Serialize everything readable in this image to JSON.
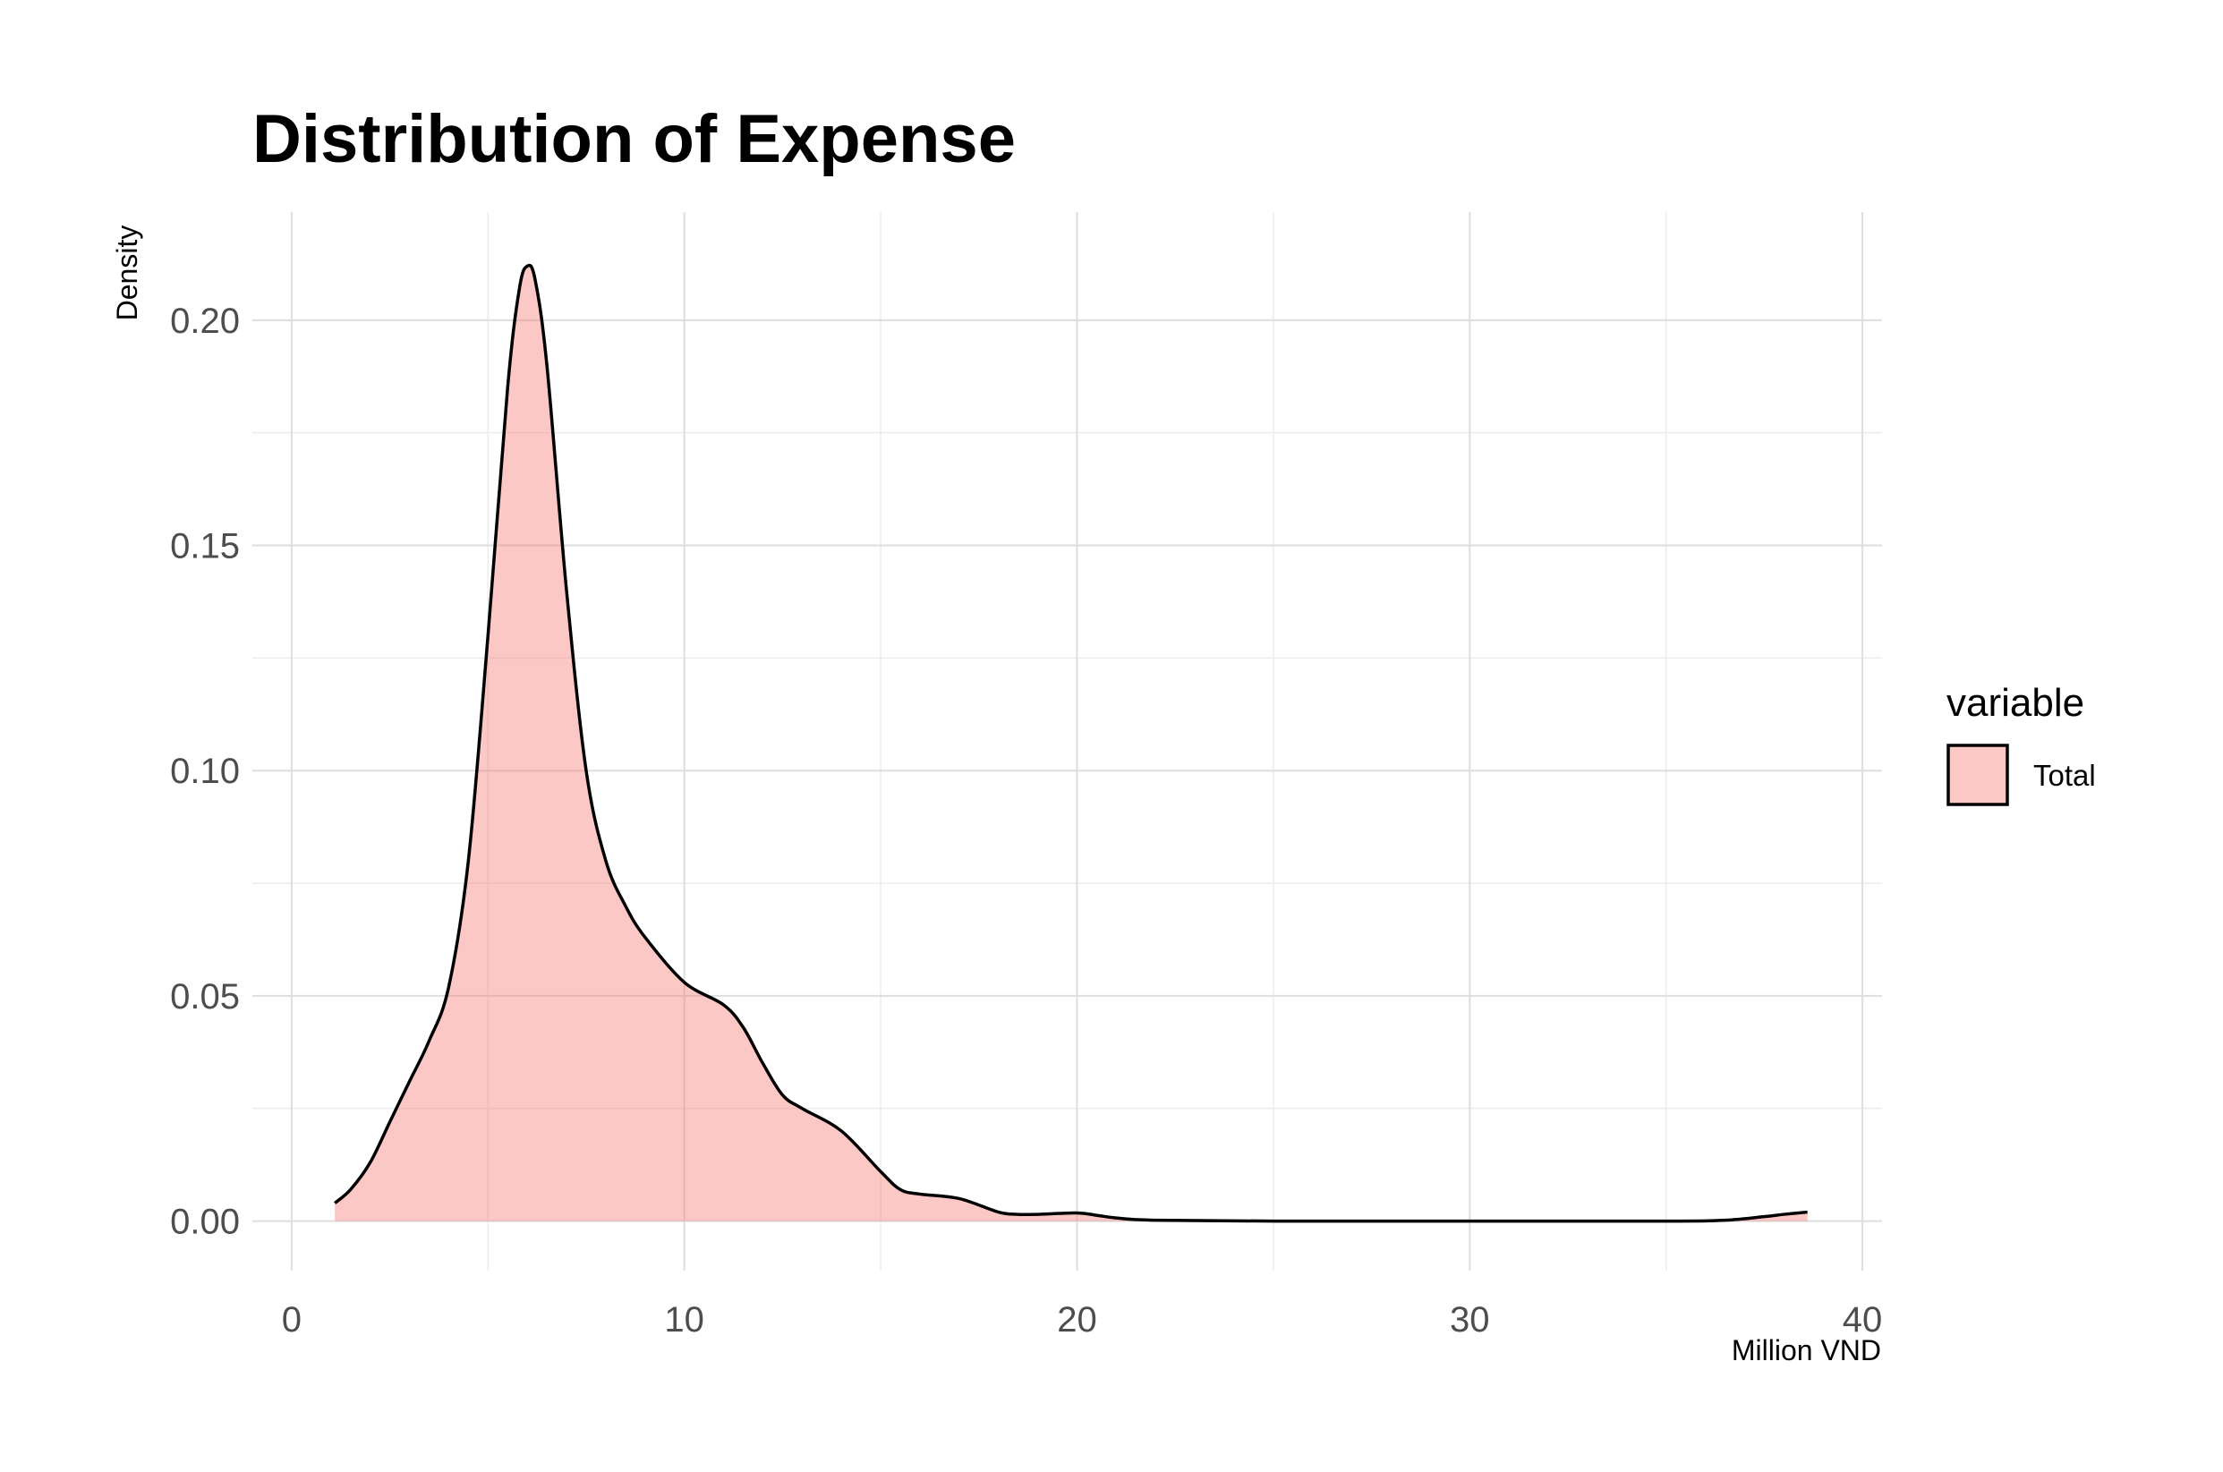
{
  "chart_data": {
    "type": "area",
    "title": "Distribution of Expense",
    "xlabel": "Million VND",
    "ylabel": "Density",
    "xlim": [
      -1,
      40.5
    ],
    "ylim": [
      -0.011,
      0.224
    ],
    "x_ticks": [
      0,
      10,
      20,
      30,
      40
    ],
    "x_tick_labels": [
      "0",
      "10",
      "20",
      "30",
      "40"
    ],
    "y_ticks": [
      0.0,
      0.05,
      0.1,
      0.15,
      0.2
    ],
    "y_tick_labels": [
      "0.00",
      "0.05",
      "0.10",
      "0.15",
      "0.20"
    ],
    "grid": true,
    "legend": {
      "title": "variable",
      "position": "right",
      "entries": [
        "Total"
      ]
    },
    "series": [
      {
        "name": "Total",
        "fill": "#f8766d",
        "fill_opacity": 0.4,
        "stroke": "#000000",
        "x": [
          1.1,
          1.5,
          2.0,
          2.5,
          3.0,
          3.5,
          4.0,
          4.5,
          5.0,
          5.5,
          5.8,
          6.0,
          6.2,
          6.5,
          7.0,
          7.5,
          8.0,
          8.5,
          9.0,
          10.0,
          11.0,
          11.5,
          12.0,
          12.5,
          13.0,
          14.0,
          15.0,
          15.5,
          16.0,
          17.0,
          18.0,
          18.5,
          19.0,
          20.0,
          20.5,
          21.0,
          22.0,
          25.0,
          30.0,
          35.0,
          36.5,
          37.5,
          38.0,
          38.6
        ],
        "y": [
          0.004,
          0.007,
          0.013,
          0.022,
          0.031,
          0.04,
          0.052,
          0.08,
          0.13,
          0.185,
          0.207,
          0.212,
          0.209,
          0.19,
          0.14,
          0.1,
          0.08,
          0.07,
          0.063,
          0.053,
          0.048,
          0.043,
          0.035,
          0.028,
          0.025,
          0.02,
          0.011,
          0.007,
          0.006,
          0.005,
          0.002,
          0.0015,
          0.0015,
          0.0018,
          0.0013,
          0.0007,
          0.0002,
          0.0,
          0.0,
          0.0,
          0.0002,
          0.001,
          0.0015,
          0.002
        ]
      }
    ]
  }
}
